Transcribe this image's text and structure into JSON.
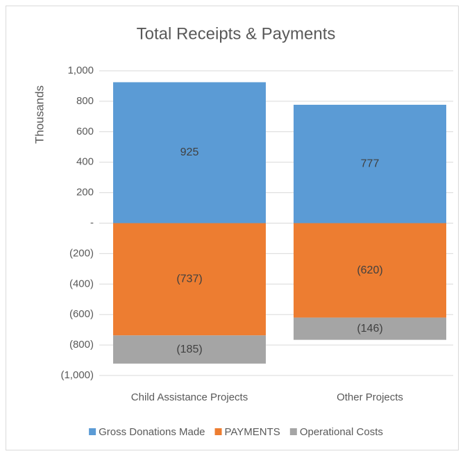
{
  "chart_data": {
    "type": "stacked_bar",
    "title": "Total Receipts & Payments",
    "y_label": "Thousands",
    "categories": [
      "Child Assistance Projects",
      "Other Projects"
    ],
    "series": [
      {
        "name": "Gross Donations Made",
        "color": "#5b9bd5",
        "values": [
          925,
          777
        ]
      },
      {
        "name": "PAYMENTS",
        "color": "#ed7d31",
        "values": [
          -737,
          -620
        ],
        "value_labels": [
          "(737)",
          "(620)"
        ]
      },
      {
        "name": "Operational Costs",
        "color": "#a5a5a5",
        "values": [
          -185,
          -146
        ],
        "value_labels": [
          "(185)",
          "(146)"
        ]
      }
    ],
    "ylim": [
      -1000,
      1000
    ],
    "yticks": [
      {
        "value": 1000,
        "label": "1,000"
      },
      800,
      600,
      400,
      200,
      {
        "value": 0,
        "label": "-"
      },
      {
        "value": -200,
        "label": "(200)"
      },
      {
        "value": -400,
        "label": "(400)"
      },
      {
        "value": -600,
        "label": "(600)"
      },
      {
        "value": -800,
        "label": "(800)"
      },
      {
        "value": -1000,
        "label": "(1,000)"
      }
    ],
    "grid": true,
    "legend": "bottom"
  }
}
